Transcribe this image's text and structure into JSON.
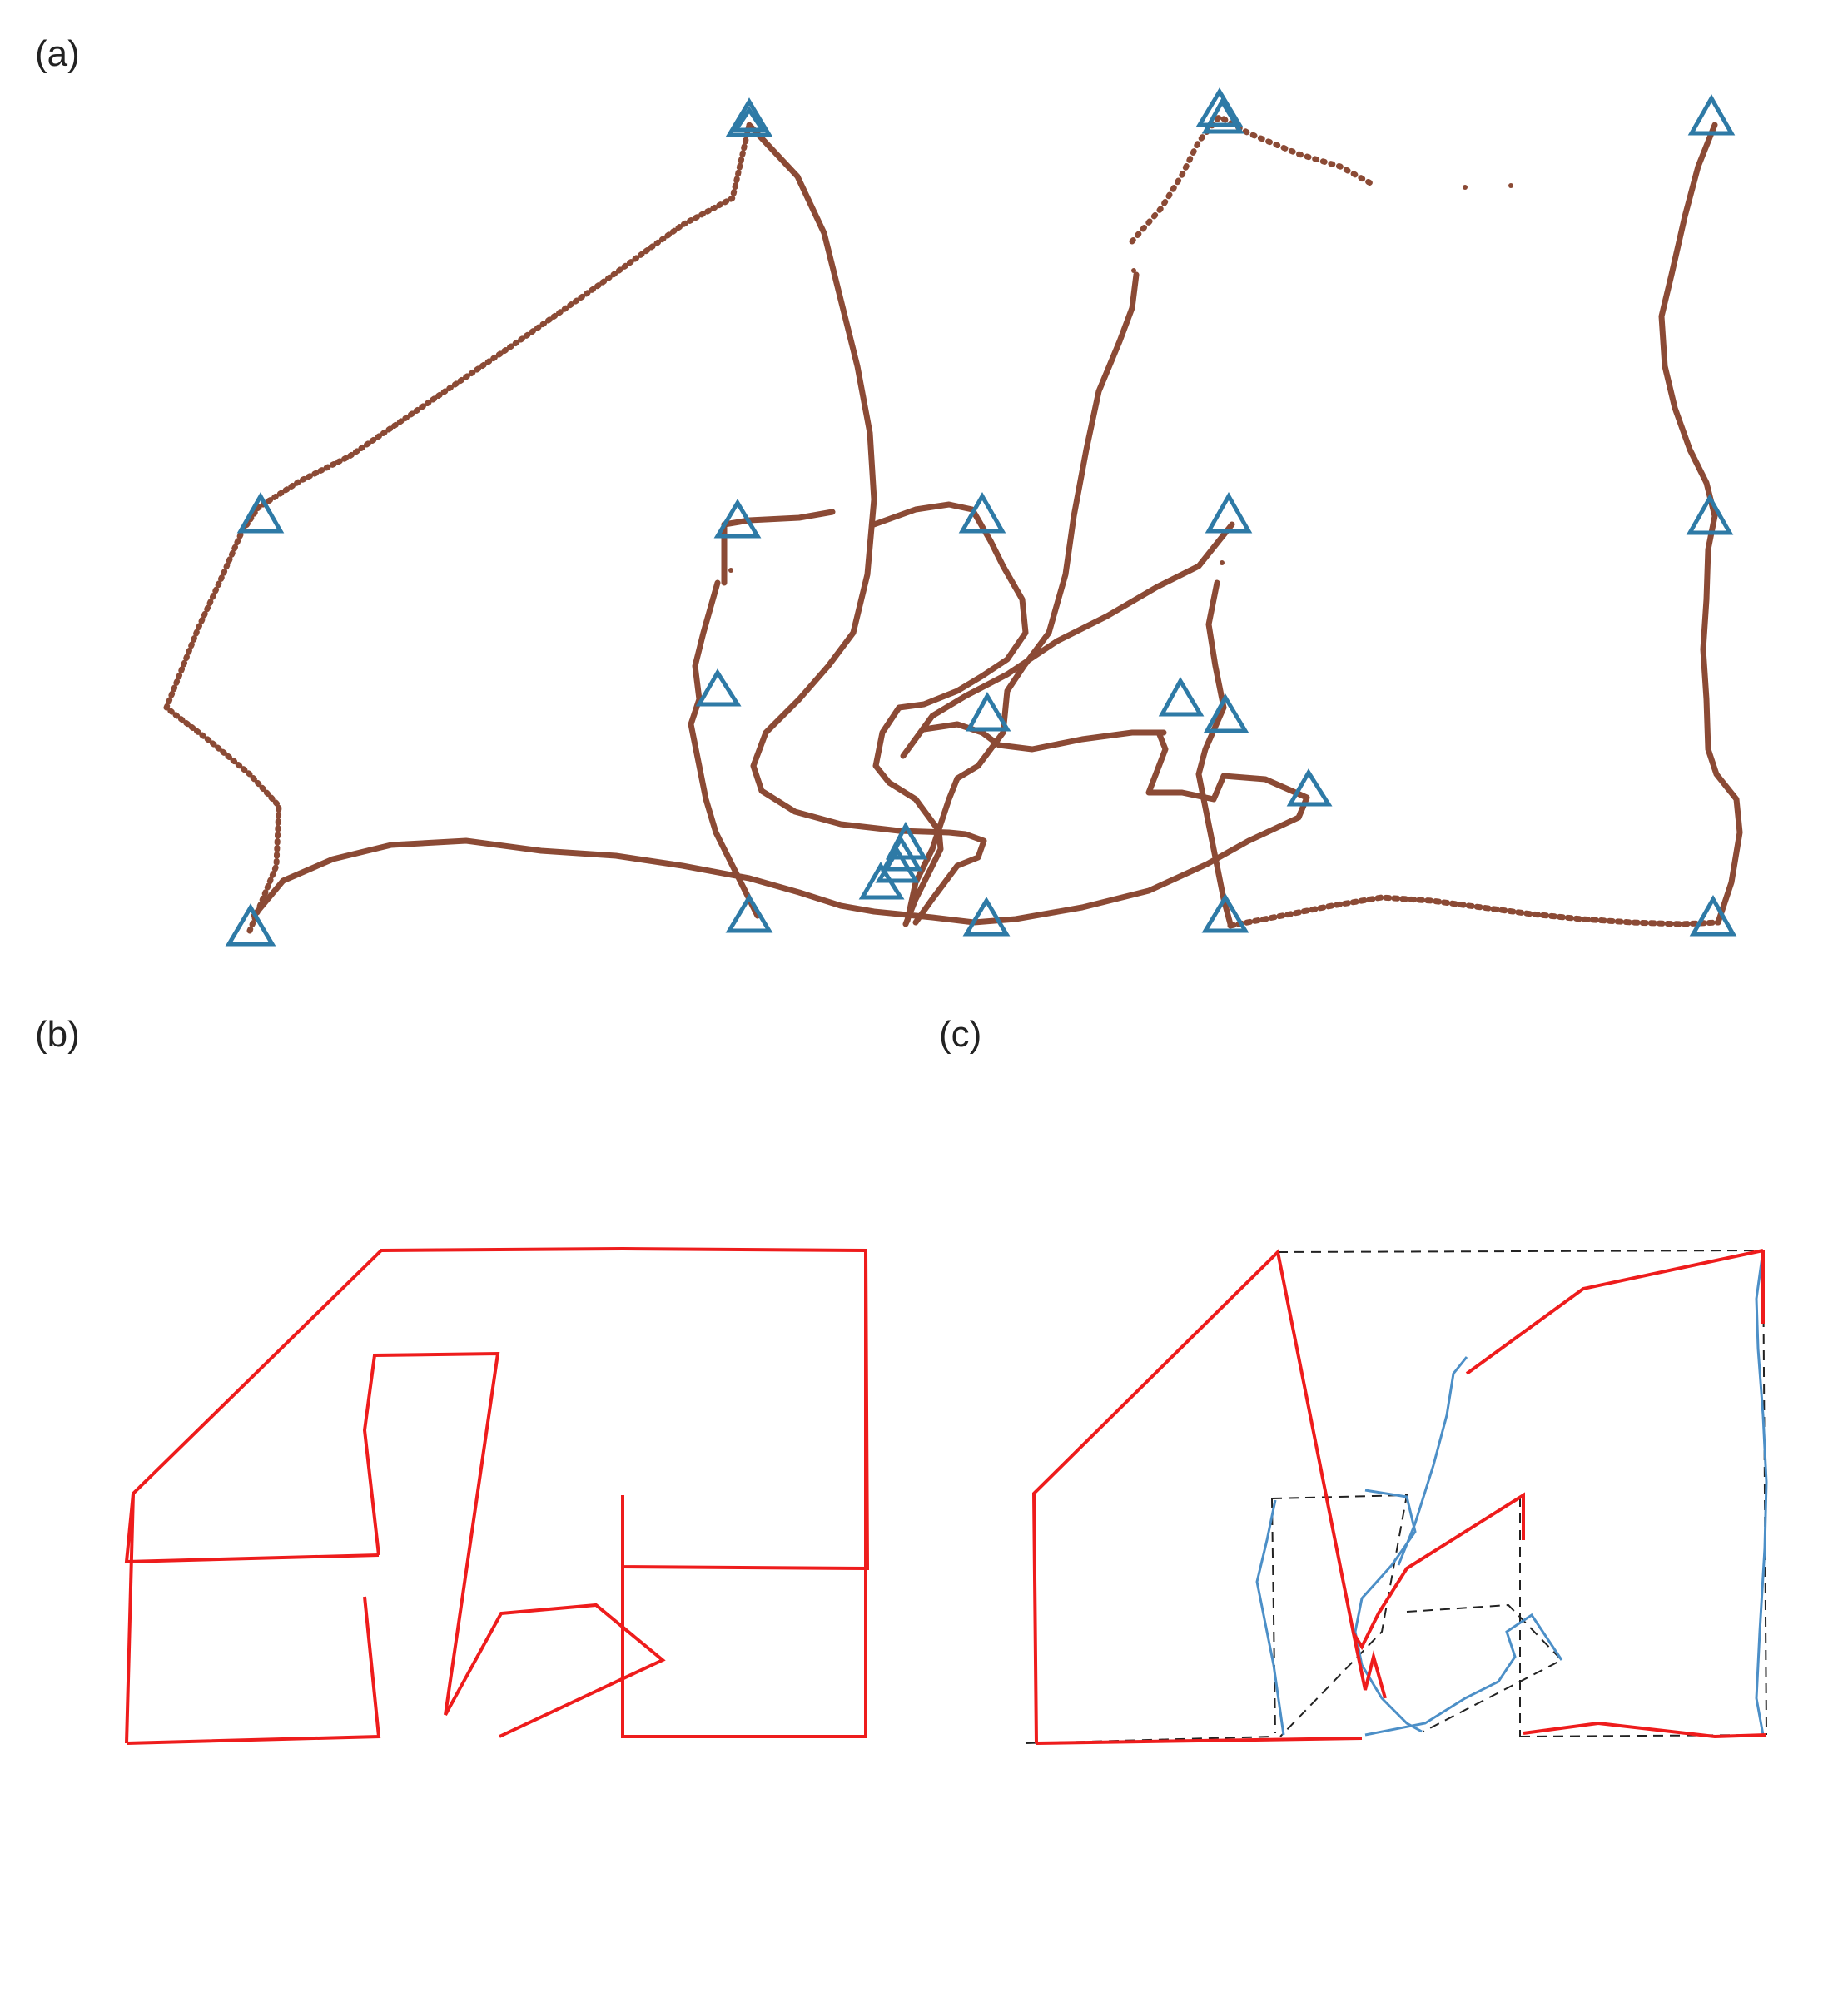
{
  "panels": {
    "a": {
      "label": "(a)"
    },
    "b": {
      "label": "(b)"
    },
    "c": {
      "label": "(c)"
    }
  },
  "colors": {
    "trajectory": "#8b4a35",
    "marker": "#2e7aa6",
    "reconstruction": "#ee1c1c",
    "measured": "#4c8fc7",
    "reference": "#222222"
  }
}
